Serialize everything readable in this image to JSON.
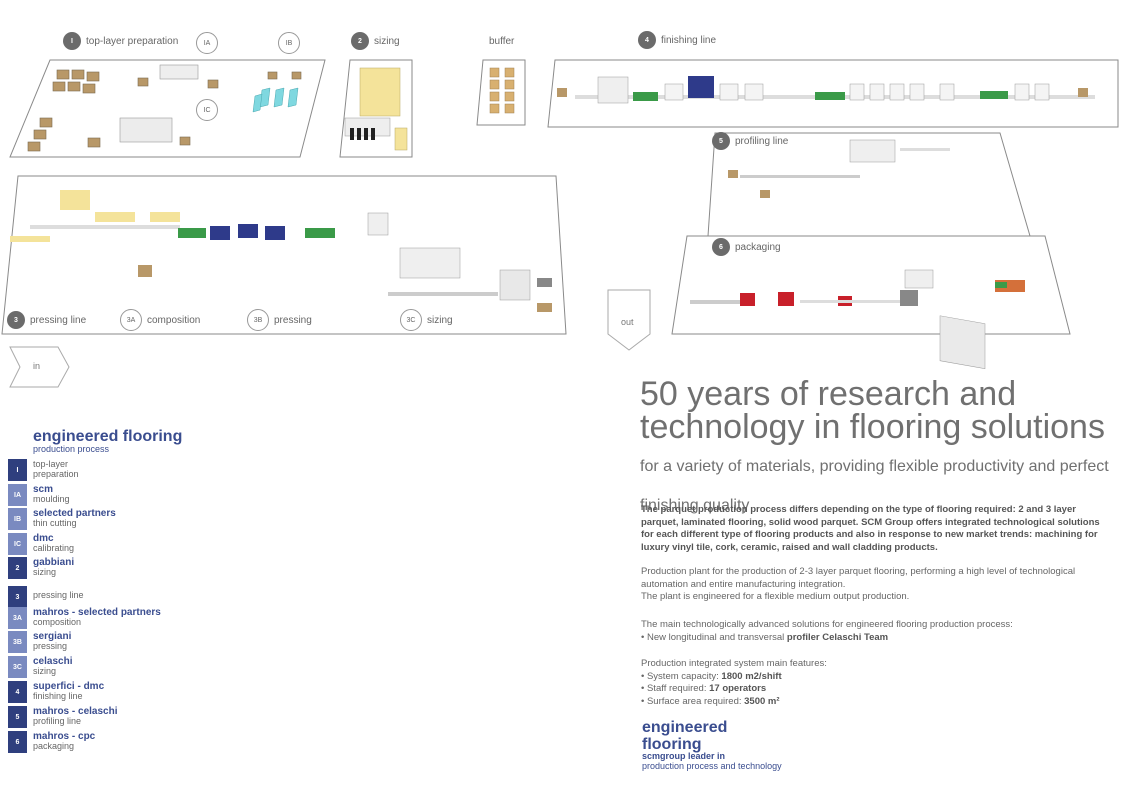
{
  "diagram": {
    "zones": {
      "z1": {
        "num": "I",
        "label": "top-layer preparation"
      },
      "z1a": {
        "num": "IA"
      },
      "z1b": {
        "num": "IB"
      },
      "z1c": {
        "num": "IC"
      },
      "z2": {
        "num": "2",
        "label": "sizing"
      },
      "buffer": {
        "label": "buffer"
      },
      "z4": {
        "num": "4",
        "label": "finishing line"
      },
      "z5": {
        "num": "5",
        "label": "profiling line"
      },
      "z6": {
        "num": "6",
        "label": "packaging"
      },
      "z3": {
        "num": "3",
        "label": "pressing line"
      },
      "z3a": {
        "num": "3A",
        "label": "composition"
      },
      "z3b": {
        "num": "3B",
        "label": "pressing"
      },
      "z3c": {
        "num": "3C",
        "label": "sizing"
      }
    },
    "arrows": {
      "in": "in",
      "out": "out"
    },
    "colors": {
      "green": "#3a9a48",
      "navy": "#2e3a8a",
      "red": "#c8202a",
      "yellow": "#f4e39a",
      "cyan": "#7fd8e0",
      "brown": "#b89868",
      "outline": "#8a8a8a"
    }
  },
  "legend": {
    "title": "engineered flooring",
    "subtitle": "production process",
    "steps": [
      {
        "tag": "I",
        "brand": "",
        "desc": "top-layer preparation",
        "color": "#2f3f7e"
      },
      {
        "tag": "IA",
        "brand": "scm",
        "desc": "moulding",
        "color": "#7a8ac0"
      },
      {
        "tag": "IB",
        "brand": "selected partners",
        "desc": "thin cutting",
        "color": "#7a8ac0"
      },
      {
        "tag": "IC",
        "brand": "dmc",
        "desc": "calibrating",
        "color": "#7a8ac0"
      },
      {
        "tag": "2",
        "brand": "gabbiani",
        "desc": "sizing",
        "color": "#2f3f7e"
      },
      {
        "tag": "3",
        "brand": "",
        "desc": "pressing line",
        "color": "#2f3f7e"
      },
      {
        "tag": "3A",
        "brand": "mahros - selected partners",
        "desc": "composition",
        "color": "#7a8ac0"
      },
      {
        "tag": "3B",
        "brand": "sergiani",
        "desc": "pressing",
        "color": "#7a8ac0"
      },
      {
        "tag": "3C",
        "brand": "celaschi",
        "desc": "sizing",
        "color": "#7a8ac0"
      },
      {
        "tag": "4",
        "brand": "superfici - dmc",
        "desc": "finishing line",
        "color": "#2f3f7e"
      },
      {
        "tag": "5",
        "brand": "mahros - celaschi",
        "desc": "profiling line",
        "color": "#2f3f7e"
      },
      {
        "tag": "6",
        "brand": "mahros - cpc",
        "desc": "packaging",
        "color": "#2f3f7e"
      }
    ]
  },
  "headline": {
    "main": "50 years of research and technology in flooring solutions",
    "tail": "for a variety of materials, providing flexible productivity and perfect finishing quality"
  },
  "body": {
    "p1": "The parquet production process differs depending on the type of flooring required: 2 and 3 layer parquet, laminated flooring, solid wood parquet. SCM Group offers integrated technological solutions for each different type of flooring products and also in response to new market trends: machining for luxury vinyl tile, cork, ceramic, raised and wall cladding products.",
    "p2": "Production plant for the production of 2-3 layer parquet flooring, performing a high level of technological automation and entire manufacturing integration.",
    "p3": "The plant is engineered for a flexible medium output production.",
    "p4": "The main technologically advanced solutions for engineered flooring production process:",
    "p4_bullet_prefix": "• New longitudinal and transversal ",
    "p4_bullet_bold": "profiler Celaschi Team",
    "p5": "Production integrated system main features:",
    "f1_label": "• System capacity: ",
    "f1_value": "1800 m2/shift",
    "f2_label": "• Staff required: ",
    "f2_value": "17 operators",
    "f3_label": "• Surface area required: ",
    "f3_value": "3500 m²"
  },
  "footer": {
    "title1": "engineered",
    "title2": "flooring",
    "sub1": "scmgroup leader in",
    "sub2": "production process and technology"
  }
}
